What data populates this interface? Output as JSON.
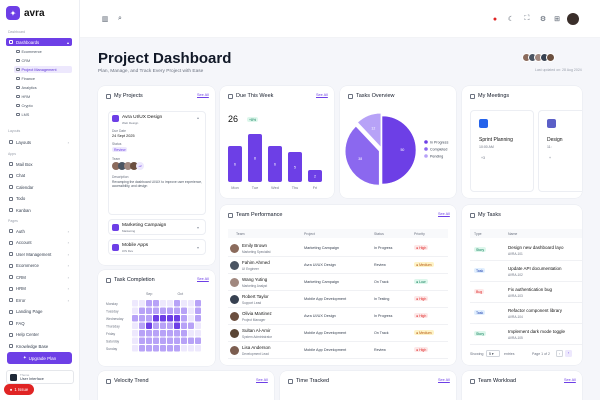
{
  "app": {
    "name": "avra"
  },
  "sidebar": {
    "section_dashboard": "Dashboard",
    "dashboards_label": "Dashboards",
    "dash_subs": [
      "Ecommerce",
      "CRM",
      "Project Management",
      "Finance",
      "Analytics",
      "HRM",
      "Crypto",
      "LMS"
    ],
    "section_layouts": "Layouts",
    "layouts_label": "Layouts",
    "section_apps": "Apps",
    "apps": [
      "Mail Box",
      "Chat",
      "Calendar",
      "Todo",
      "Kanban"
    ],
    "section_pages": "Pages",
    "pages": [
      "Auth",
      "Account",
      "User Management",
      "Ecommerce",
      "CRM",
      "HRM",
      "Error",
      "Landing Page",
      "FAQ",
      "Help Center",
      "Knowledge Base"
    ],
    "upgrade": "Upgrade Plan",
    "theme_label": "Theme",
    "theme_value": "User Interface",
    "issue": "1 Issue"
  },
  "header": {
    "title": "Project Dashboard",
    "subtitle": "Plan, Manage, and Track Every Project with Ease",
    "last_updated": "Last updated on: 28 Aug 2024"
  },
  "see_all": "See All",
  "my_projects": {
    "title": "My Projects",
    "open": {
      "name": "Avra UI/UX Design",
      "tag": "Web Design",
      "due_label": "Due Date",
      "due": "24 Sept 2025",
      "status_label": "Status",
      "status": "Review",
      "team_label": "Team",
      "team_more": "+2",
      "desc_label": "Description",
      "desc": "Revamping the dashboard UI/UX to improve user experience, accessibility, and design"
    },
    "others": [
      {
        "name": "Marketing Campaign",
        "tag": "Marketing"
      },
      {
        "name": "Mobile Apps",
        "tag": "iOS Dev"
      }
    ]
  },
  "due_week": {
    "title": "Due This Week",
    "count": "26",
    "badge": "+8%"
  },
  "tasks_overview": {
    "title": "Tasks Overview",
    "legend": [
      "In Progress",
      "Completed",
      "Pending"
    ]
  },
  "meetings": {
    "title": "My Meetings",
    "items": [
      {
        "name": "Sprint Planning",
        "time": "10:00 AM",
        "more": "+3"
      },
      {
        "name": "Design",
        "time": "11:",
        "more": "+"
      }
    ]
  },
  "team_performance": {
    "title": "Team Performance",
    "columns": [
      "Team",
      "Project",
      "Status",
      "Priority"
    ],
    "rows": [
      {
        "name": "Emily Brown",
        "role": "Marketing Specialist",
        "project": "Marketing Campaign",
        "status": "In Progress",
        "priority": "High"
      },
      {
        "name": "Fahim Ahmed",
        "role": "UI Engineer",
        "project": "Avra UI/UX Design",
        "status": "Review",
        "priority": "Medium"
      },
      {
        "name": "Wang Yuting",
        "role": "Marketing Analyst",
        "project": "Marketing Campaign",
        "status": "On Track",
        "priority": "Low"
      },
      {
        "name": "Robert Taylor",
        "role": "Support Lead",
        "project": "Mobile App Development",
        "status": "In Testing",
        "priority": "High"
      },
      {
        "name": "Olivia Martinez",
        "role": "Project Manager",
        "project": "Avra UI/UX Design",
        "status": "In Progress",
        "priority": "High"
      },
      {
        "name": "Sultan Al-Amir",
        "role": "System Administrator",
        "project": "Mobile App Development",
        "status": "On Track",
        "priority": "Medium"
      },
      {
        "name": "Lisa Anderson",
        "role": "Development Lead",
        "project": "Mobile App Development",
        "status": "Review",
        "priority": "High"
      }
    ]
  },
  "my_tasks": {
    "title": "My Tasks",
    "columns": [
      "Type",
      "Name"
    ],
    "rows": [
      {
        "type": "Story",
        "name": "Design new dashboard layo",
        "id": "AVRA-101"
      },
      {
        "type": "Task",
        "name": "Update API documentation",
        "id": "AVRA-102"
      },
      {
        "type": "Bug",
        "name": "Fix authentication bug",
        "id": "AVRA-103"
      },
      {
        "type": "Task",
        "name": "Refactor component library",
        "id": "AVRA-104"
      },
      {
        "type": "Story",
        "name": "Implement dark mode toggle",
        "id": "AVRA-105"
      }
    ],
    "showing": "Showing",
    "per_page": "5",
    "entries": "entries",
    "page": "Page 1 of 2"
  },
  "task_completion": {
    "title": "Task Completion",
    "months": [
      "Sep",
      "Oct"
    ],
    "days": [
      "Monday",
      "Tuesday",
      "Wednesday",
      "Thursday",
      "Friday",
      "Saturday",
      "Sunday"
    ]
  },
  "bottom": {
    "velocity": "Velocity Trend",
    "time": "Time Tracked",
    "workload": "Team Workload"
  },
  "chart_data": [
    {
      "type": "bar",
      "title": "Due This Week",
      "categories": [
        "Mon",
        "Tue",
        "Wed",
        "Thu",
        "Fri"
      ],
      "values": [
        6,
        8,
        6,
        5,
        2
      ]
    },
    {
      "type": "pie",
      "title": "Tasks Overview",
      "categories": [
        "In Progress",
        "Completed",
        "Pending"
      ],
      "values": [
        50,
        38,
        12
      ],
      "colors": [
        "#6d3fe6",
        "#8b68ef",
        "#b7a2f7"
      ]
    },
    {
      "type": "heatmap",
      "title": "Task Completion",
      "columns": [
        "Sep",
        "Oct"
      ],
      "rows": [
        "Monday",
        "Tuesday",
        "Wednesday",
        "Thursday",
        "Friday",
        "Saturday",
        "Sunday"
      ],
      "values": [
        [
          0,
          0,
          1,
          1,
          0,
          0,
          1,
          0,
          0,
          1
        ],
        [
          0,
          1,
          1,
          1,
          1,
          1,
          1,
          1,
          0,
          1
        ],
        [
          1,
          1,
          1,
          2,
          2,
          2,
          2,
          1,
          0,
          1
        ],
        [
          0,
          1,
          2,
          1,
          1,
          1,
          2,
          1,
          1,
          0
        ],
        [
          0,
          1,
          1,
          1,
          1,
          1,
          1,
          1,
          0,
          0
        ],
        [
          0,
          1,
          1,
          1,
          1,
          1,
          1,
          1,
          1,
          1
        ],
        [
          0,
          1,
          1,
          1,
          1,
          1,
          1,
          0,
          0,
          0
        ]
      ]
    }
  ],
  "colors": {
    "accent": "#6d3fe6",
    "accent_light": "#ede8fd"
  }
}
